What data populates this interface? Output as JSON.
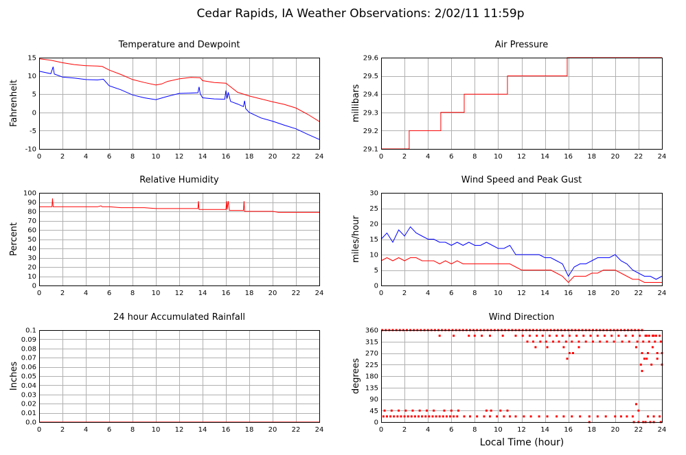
{
  "page": {
    "title": "Cedar Rapids, IA Weather Observations: 2/02/11 11:59p",
    "xlabel": "Local Time (hour)"
  },
  "colors": {
    "red": "#ff0000",
    "blue": "#0000ff",
    "grid": "#b0b0b0"
  },
  "chart_data": [
    {
      "id": "temp",
      "type": "line",
      "title": "Temperature and Dewpoint",
      "ylabel": "Fahrenheit",
      "xlim": [
        0,
        24
      ],
      "ylim": [
        -10,
        15
      ],
      "xticks": [
        0,
        2,
        4,
        6,
        8,
        10,
        12,
        14,
        16,
        18,
        20,
        22,
        24
      ],
      "yticks": [
        -10,
        -5,
        0,
        5,
        10,
        15
      ],
      "grid": true,
      "series": [
        {
          "color": "#ff0000",
          "x": [
            0,
            1,
            2,
            3,
            4,
            5,
            5.4,
            6,
            7,
            8,
            9,
            10,
            10.5,
            11,
            12,
            13,
            13.8,
            14,
            15,
            16,
            17,
            18,
            19,
            20,
            21,
            22,
            23,
            24
          ],
          "y": [
            14.7,
            14.3,
            13.6,
            13.1,
            12.8,
            12.7,
            12.6,
            11.6,
            10.4,
            9.0,
            8.2,
            7.5,
            7.8,
            8.5,
            9.2,
            9.6,
            9.5,
            8.7,
            8.2,
            8.0,
            5.5,
            4.5,
            3.7,
            2.9,
            2.2,
            1.2,
            -0.5,
            -2.5
          ]
        },
        {
          "color": "#0000ff",
          "x": [
            0,
            1,
            1.2,
            1.3,
            2,
            3,
            4,
            5,
            5.5,
            6,
            7,
            8,
            9,
            10,
            11,
            12,
            13,
            13.6,
            13.7,
            13.8,
            14,
            15,
            15.9,
            16,
            16.1,
            16.2,
            16.4,
            17,
            17.5,
            17.6,
            17.7,
            18,
            19,
            20,
            21,
            22,
            23,
            24
          ],
          "y": [
            11.3,
            10.6,
            12.5,
            10.5,
            9.7,
            9.4,
            9.0,
            8.9,
            9.1,
            7.3,
            6.2,
            4.8,
            4.0,
            3.5,
            4.4,
            5.2,
            5.3,
            5.4,
            7.0,
            5.1,
            4.0,
            3.7,
            3.6,
            6.0,
            3.8,
            5.5,
            3.0,
            2.3,
            1.6,
            3.2,
            1.0,
            0.0,
            -1.5,
            -2.4,
            -3.5,
            -4.5,
            -6.0,
            -7.4
          ]
        }
      ]
    },
    {
      "id": "press",
      "type": "line",
      "title": "Air Pressure",
      "ylabel": "millibars",
      "xlim": [
        0,
        24
      ],
      "ylim": [
        29.1,
        29.6
      ],
      "xticks": [
        0,
        2,
        4,
        6,
        8,
        10,
        12,
        14,
        16,
        18,
        20,
        22,
        24
      ],
      "yticks": [
        29.1,
        29.2,
        29.3,
        29.4,
        29.5,
        29.6
      ],
      "grid": true,
      "series": [
        {
          "color": "#ff0000",
          "x": [
            0,
            2.4,
            2.4,
            5.1,
            5.1,
            7.1,
            7.1,
            10.8,
            10.8,
            15.9,
            15.9,
            24
          ],
          "y": [
            29.1,
            29.1,
            29.2,
            29.2,
            29.3,
            29.3,
            29.4,
            29.4,
            29.5,
            29.5,
            29.6,
            29.6
          ]
        }
      ]
    },
    {
      "id": "rh",
      "type": "line",
      "title": "Relative Humidity",
      "ylabel": "Percent",
      "xlim": [
        0,
        24
      ],
      "ylim": [
        0,
        100
      ],
      "xticks": [
        0,
        2,
        4,
        6,
        8,
        10,
        12,
        14,
        16,
        18,
        20,
        22,
        24
      ],
      "yticks": [
        0,
        10,
        20,
        30,
        40,
        50,
        60,
        70,
        80,
        90,
        100
      ],
      "grid": true,
      "series": [
        {
          "color": "#ff0000",
          "x": [
            0,
            1.1,
            1.15,
            1.2,
            1.25,
            2,
            3,
            4,
            5,
            5.3,
            5.4,
            6,
            7,
            8,
            9,
            10,
            11,
            12,
            13,
            13.6,
            13.65,
            13.7,
            14,
            15,
            16,
            16.05,
            16.1,
            16.2,
            16.3,
            17,
            17.5,
            17.55,
            17.6,
            18,
            19,
            20,
            20.5,
            21,
            22,
            23,
            23.5,
            24
          ],
          "y": [
            85,
            85,
            94,
            85,
            85,
            85,
            85,
            85,
            85,
            86,
            85,
            85,
            84,
            84,
            84,
            83,
            83,
            83,
            83,
            83,
            91,
            82,
            82,
            82,
            82,
            91,
            82,
            91,
            81,
            81,
            81,
            91,
            80,
            80,
            80,
            80,
            79,
            79,
            79,
            79,
            79,
            79
          ]
        }
      ]
    },
    {
      "id": "wind",
      "type": "line",
      "title": "Wind Speed and Peak Gust",
      "ylabel": "miles/hour",
      "xlim": [
        0,
        24
      ],
      "ylim": [
        0,
        30
      ],
      "xticks": [
        0,
        2,
        4,
        6,
        8,
        10,
        12,
        14,
        16,
        18,
        20,
        22,
        24
      ],
      "yticks": [
        0,
        5,
        10,
        15,
        20,
        25,
        30
      ],
      "grid": true,
      "series": [
        {
          "color": "#0000ff",
          "x": [
            0,
            0.5,
            1,
            1.5,
            2,
            2.5,
            3,
            3.5,
            4,
            4.5,
            5,
            5.5,
            6,
            6.5,
            7,
            7.5,
            8,
            8.5,
            9,
            9.5,
            10,
            10.5,
            11,
            11.5,
            12,
            12.5,
            13,
            13.5,
            14,
            14.5,
            15,
            15.5,
            16,
            16.5,
            17,
            17.5,
            18,
            18.5,
            19,
            19.5,
            20,
            20.5,
            21,
            21.5,
            22,
            22.5,
            23,
            23.5,
            24
          ],
          "y": [
            15,
            17,
            14,
            18,
            16,
            19,
            17,
            16,
            15,
            15,
            14,
            14,
            13,
            14,
            13,
            14,
            13,
            13,
            14,
            13,
            12,
            12,
            13,
            10,
            10,
            10,
            10,
            10,
            9,
            9,
            8,
            7,
            3,
            6,
            7,
            7,
            8,
            9,
            9,
            9,
            10,
            8,
            7,
            5,
            4,
            3,
            3,
            2,
            3
          ]
        },
        {
          "color": "#ff0000",
          "x": [
            0,
            0.5,
            1,
            1.5,
            2,
            2.5,
            3,
            3.5,
            4,
            4.5,
            5,
            5.5,
            6,
            6.5,
            7,
            7.5,
            8,
            8.5,
            9,
            9.5,
            10,
            10.5,
            11,
            11.5,
            12,
            12.5,
            13,
            13.5,
            14,
            14.5,
            15,
            15.5,
            16,
            16.5,
            17,
            17.5,
            18,
            18.5,
            19,
            19.5,
            20,
            20.5,
            21,
            21.5,
            22,
            22.5,
            23,
            23.5,
            24
          ],
          "y": [
            8,
            9,
            8,
            9,
            8,
            9,
            9,
            8,
            8,
            8,
            7,
            8,
            7,
            8,
            7,
            7,
            7,
            7,
            7,
            7,
            7,
            7,
            7,
            6,
            5,
            5,
            5,
            5,
            5,
            5,
            4,
            3,
            1,
            3,
            3,
            3,
            4,
            4,
            5,
            5,
            5,
            4,
            3,
            2,
            2,
            1,
            1,
            1,
            1
          ]
        }
      ]
    },
    {
      "id": "rain",
      "type": "line",
      "title": "24 hour Accumulated Rainfall",
      "ylabel": "Inches",
      "xlim": [
        0,
        24
      ],
      "ylim": [
        0,
        0.1
      ],
      "xticks": [
        0,
        2,
        4,
        6,
        8,
        10,
        12,
        14,
        16,
        18,
        20,
        22,
        24
      ],
      "yticks": [
        0.0,
        0.01,
        0.02,
        0.03,
        0.04,
        0.05,
        0.06,
        0.07,
        0.08,
        0.09,
        0.1
      ],
      "ytick_labels": [
        "0.0",
        "0.01",
        "0.02",
        "0.03",
        "0.04",
        "0.05",
        "0.06",
        "0.07",
        "0.08",
        "0.09",
        "0.1"
      ],
      "grid": true,
      "series": [
        {
          "color": "#ff0000",
          "x": [
            0,
            24
          ],
          "y": [
            0,
            0
          ]
        }
      ]
    },
    {
      "id": "dir",
      "type": "scatter",
      "title": "Wind Direction",
      "ylabel": "degrees",
      "xlim": [
        0,
        24
      ],
      "ylim": [
        0,
        360
      ],
      "xticks": [
        0,
        2,
        4,
        6,
        8,
        10,
        12,
        14,
        16,
        18,
        20,
        22,
        24
      ],
      "yticks": [
        0,
        45,
        90,
        135,
        180,
        225,
        270,
        315,
        360
      ],
      "grid": true,
      "series": [
        {
          "color": "#ff0000",
          "x": [
            0.1,
            0.4,
            0.7,
            1.0,
            1.3,
            1.6,
            1.9,
            2.2,
            2.5,
            2.8,
            3.1,
            3.4,
            3.7,
            4.0,
            4.3,
            4.6,
            4.9,
            5.2,
            5.5,
            5.8,
            6.1,
            6.4,
            6.7,
            7.0,
            7.3,
            7.6,
            7.9,
            8.2,
            8.5,
            8.8,
            9.1,
            9.4,
            9.7,
            10.0,
            10.3,
            10.6,
            10.9,
            11.2,
            11.5,
            11.8,
            12.1,
            12.4,
            12.7,
            13.0,
            13.3,
            13.6,
            13.9,
            14.2,
            14.5,
            14.8,
            15.1,
            15.4,
            15.7,
            16.0,
            16.3,
            16.6,
            16.9,
            17.2,
            17.5,
            17.8,
            18.1,
            18.4,
            18.7,
            19.0,
            19.3,
            19.6,
            19.9,
            20.2,
            20.5,
            20.8,
            21.1,
            21.4,
            21.7,
            22.0,
            22.3,
            22.6,
            22.9,
            23.2,
            23.5,
            23.8,
            0.2,
            0.5,
            0.8,
            1.1,
            1.4,
            1.7,
            2.0,
            2.3,
            2.6,
            2.9,
            3.2,
            3.5,
            3.8,
            4.1,
            4.4,
            4.7,
            5.0,
            5.3,
            5.6,
            5.9,
            6.2,
            6.5,
            7.1,
            7.6,
            8.2,
            8.8,
            9.3,
            9.9,
            10.5,
            11.0,
            11.5,
            12.2,
            12.8,
            13.5,
            14.2,
            15.0,
            15.6,
            16.3,
            17.0,
            17.8,
            18.5,
            19.2,
            20.0,
            20.5,
            21.0,
            21.5,
            22.8,
            23.3,
            23.8,
            0.3,
            0.9,
            1.5,
            2.1,
            2.7,
            3.3,
            3.9,
            4.5,
            5.4,
            6.0,
            6.6,
            9.0,
            9.4,
            10.2,
            10.8,
            21.8,
            22.0,
            5.0,
            6.2,
            7.5,
            8.0,
            8.6,
            9.3,
            10.4,
            11.5,
            12.1,
            12.7,
            13.3,
            13.8,
            14.4,
            15.0,
            15.5,
            16.1,
            16.7,
            17.3,
            17.9,
            18.5,
            19.1,
            19.7,
            20.3,
            20.9,
            21.5,
            22.1,
            22.7,
            23.3,
            12.5,
            13.0,
            13.6,
            14.1,
            14.7,
            15.2,
            15.8,
            16.3,
            16.9,
            17.5,
            18.1,
            18.7,
            19.3,
            19.9,
            20.6,
            21.2,
            21.9,
            22.4,
            22.9,
            23.4,
            23.9,
            13.2,
            14.2,
            15.6,
            16.4,
            16.9,
            21.8,
            22.3,
            22.8,
            23.2,
            23.6,
            24.0,
            15.9,
            16.1,
            22.2,
            22.5,
            22.7,
            23.1,
            23.6,
            24.0,
            21.6,
            22.4,
            23.3,
            23.9,
            17.8,
            22.0,
            22.3,
            22.6,
            23.0,
            23.3
          ],
          "y": [
            360,
            360,
            360,
            360,
            360,
            360,
            360,
            360,
            360,
            360,
            360,
            360,
            360,
            360,
            360,
            360,
            360,
            360,
            360,
            360,
            360,
            360,
            360,
            360,
            360,
            360,
            360,
            360,
            360,
            360,
            360,
            360,
            360,
            360,
            360,
            360,
            360,
            360,
            360,
            360,
            360,
            360,
            360,
            360,
            360,
            360,
            360,
            360,
            360,
            360,
            360,
            360,
            360,
            360,
            360,
            360,
            360,
            360,
            360,
            360,
            360,
            360,
            360,
            360,
            360,
            360,
            360,
            360,
            360,
            360,
            360,
            360,
            360,
            360,
            360,
            338,
            338,
            338,
            338,
            338,
            22,
            22,
            22,
            22,
            22,
            22,
            22,
            22,
            22,
            22,
            22,
            22,
            22,
            22,
            22,
            22,
            22,
            22,
            22,
            22,
            22,
            22,
            22,
            22,
            22,
            22,
            22,
            22,
            22,
            22,
            22,
            22,
            22,
            22,
            22,
            22,
            22,
            22,
            22,
            22,
            22,
            22,
            22,
            22,
            22,
            22,
            22,
            22,
            22,
            45,
            45,
            45,
            45,
            45,
            45,
            45,
            45,
            45,
            45,
            45,
            45,
            45,
            45,
            45,
            70,
            45,
            338,
            338,
            338,
            338,
            338,
            338,
            338,
            338,
            338,
            338,
            338,
            338,
            338,
            338,
            338,
            338,
            338,
            338,
            338,
            338,
            338,
            338,
            338,
            338,
            338,
            338,
            338,
            338,
            315,
            315,
            315,
            315,
            315,
            315,
            315,
            315,
            315,
            315,
            315,
            315,
            315,
            315,
            315,
            315,
            315,
            315,
            315,
            315,
            315,
            293,
            293,
            293,
            270,
            293,
            293,
            270,
            270,
            293,
            270,
            270,
            248,
            270,
            225,
            248,
            248,
            225,
            248,
            225,
            0,
            0,
            0,
            0,
            0,
            0,
            200,
            0,
            0,
            0
          ]
        }
      ]
    }
  ]
}
